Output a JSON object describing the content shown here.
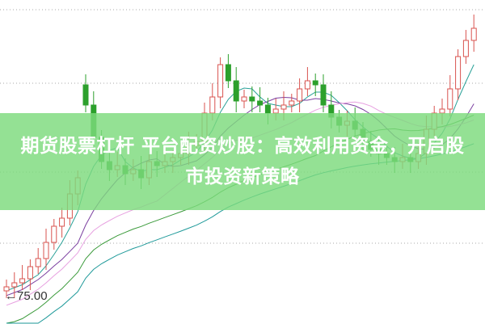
{
  "article": {
    "title": "期货股票杠杆 平台配资炒股：高效利用资金，开启股市投资新策略"
  },
  "chart_data": {
    "type": "candlestick",
    "price_label": "75.00",
    "price_label_value": 75.0,
    "grid": "horizontal-dotted",
    "up_color": "#d9534f",
    "down_color": "#2ca02c",
    "ma_colors": [
      "#2aa198",
      "#7b3fa0",
      "#e7a0e0",
      "#3a9a3a",
      "#1f9a9a"
    ],
    "ma_periods": [
      5,
      10,
      20,
      40,
      60
    ],
    "close": [
      76.3,
      76.8,
      77.3,
      78.8,
      79.8,
      81.8,
      83.8,
      84.8,
      87.8,
      89.8,
      98.8,
      94.8,
      91.8,
      90.8,
      91.3,
      90.3,
      90.8,
      89.8,
      91.8,
      91.3,
      91.8,
      92.3,
      92.8,
      93.8,
      94.3,
      97.8,
      99.8,
      103.8,
      101.8,
      99.3,
      99.8,
      99.3,
      98.8,
      97.8,
      98.3,
      98.8,
      99.3,
      100.8,
      101.8,
      101.3,
      98.8,
      97.3,
      96.3,
      96.8,
      95.8,
      94.3,
      93.3,
      92.8,
      92.3,
      91.8,
      92.3,
      91.8,
      92.8,
      95.8,
      97.8,
      98.3,
      100.8,
      104.8,
      106.8,
      108.3
    ],
    "open": [
      75.8,
      76.3,
      76.8,
      77.3,
      78.8,
      79.8,
      81.8,
      83.8,
      84.8,
      87.8,
      101.3,
      98.8,
      94.8,
      91.8,
      90.8,
      91.3,
      90.3,
      90.8,
      89.8,
      91.8,
      91.3,
      91.8,
      92.3,
      92.8,
      93.8,
      94.3,
      97.8,
      99.8,
      103.8,
      101.8,
      99.3,
      99.8,
      99.3,
      98.8,
      97.8,
      98.3,
      98.8,
      99.3,
      100.8,
      101.8,
      101.3,
      98.8,
      97.3,
      96.3,
      96.8,
      95.8,
      94.3,
      93.3,
      92.8,
      92.3,
      91.8,
      92.3,
      91.8,
      92.8,
      95.8,
      97.8,
      98.3,
      100.8,
      104.8,
      106.8
    ]
  }
}
